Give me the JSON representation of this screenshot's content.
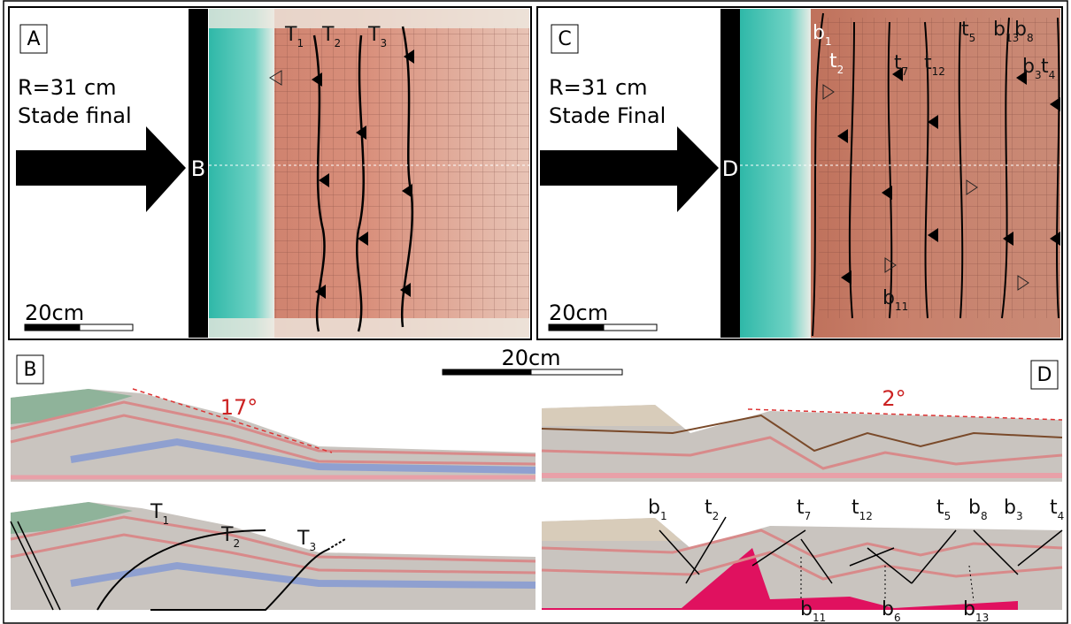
{
  "panel_A": {
    "label": "A",
    "radius": "R=31 cm",
    "stage": "Stade final",
    "scale": "20cm",
    "section": "B",
    "faults": [
      {
        "name": "T",
        "sub": "1"
      },
      {
        "name": "T",
        "sub": "2"
      },
      {
        "name": "T",
        "sub": "3"
      }
    ]
  },
  "panel_C": {
    "label": "C",
    "radius": "R=31 cm",
    "stage": "Stade Final",
    "scale": "20cm",
    "section": "D",
    "faults": [
      {
        "name": "b",
        "sub": "1"
      },
      {
        "name": "t",
        "sub": "2"
      },
      {
        "name": "t",
        "sub": "7"
      },
      {
        "name": "t",
        "sub": "12"
      },
      {
        "name": "t",
        "sub": "5"
      },
      {
        "name": "b",
        "sub": "13"
      },
      {
        "name": "b",
        "sub": "8"
      },
      {
        "name": "b",
        "sub": "3"
      },
      {
        "name": "t",
        "sub": "4"
      },
      {
        "name": "b",
        "sub": "11"
      }
    ]
  },
  "scale_bar": "20cm",
  "panel_B": {
    "label": "B",
    "angle": "17°",
    "faults": [
      {
        "name": "T",
        "sub": "1"
      },
      {
        "name": "T",
        "sub": "2"
      },
      {
        "name": "T",
        "sub": "3"
      }
    ]
  },
  "panel_D": {
    "label": "D",
    "angle": "2°",
    "faults": [
      {
        "name": "b",
        "sub": "1"
      },
      {
        "name": "t",
        "sub": "2"
      },
      {
        "name": "t",
        "sub": "7"
      },
      {
        "name": "t",
        "sub": "12"
      },
      {
        "name": "t",
        "sub": "5"
      },
      {
        "name": "b",
        "sub": "8"
      },
      {
        "name": "b",
        "sub": "3"
      },
      {
        "name": "t",
        "sub": "4"
      },
      {
        "name": "b",
        "sub": "11"
      },
      {
        "name": "b",
        "sub": "6"
      },
      {
        "name": "b",
        "sub": "13"
      }
    ]
  }
}
